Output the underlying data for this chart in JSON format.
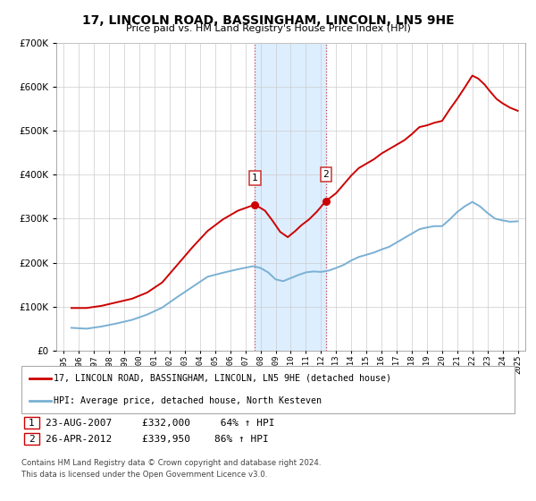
{
  "title": "17, LINCOLN ROAD, BASSINGHAM, LINCOLN, LN5 9HE",
  "subtitle": "Price paid vs. HM Land Registry's House Price Index (HPI)",
  "legend_house": "17, LINCOLN ROAD, BASSINGHAM, LINCOLN, LN5 9HE (detached house)",
  "legend_hpi": "HPI: Average price, detached house, North Kesteven",
  "sale1_date": "23-AUG-2007",
  "sale1_price": "£332,000",
  "sale1_hpi": "64% ↑ HPI",
  "sale2_date": "26-APR-2012",
  "sale2_price": "£339,950",
  "sale2_hpi": "86% ↑ HPI",
  "footnote1": "Contains HM Land Registry data © Crown copyright and database right 2024.",
  "footnote2": "This data is licensed under the Open Government Licence v3.0.",
  "house_color": "#cc0000",
  "hpi_color": "#7ab0d4",
  "shade_color": "#ddeeff",
  "sale1_year": 2007.63,
  "sale2_year": 2012.32,
  "sale1_price_val": 332000,
  "sale2_price_val": 339950,
  "ylim": [
    0,
    700000
  ],
  "xlim_start": 1994.5,
  "xlim_end": 2025.5,
  "house_prices_years": [
    1995.5,
    1996.5,
    1997.5,
    1998.5,
    1999.5,
    2000.5,
    2001.5,
    2002.5,
    2003.5,
    2004.5,
    2005.5,
    2006.5,
    2007.63,
    2008.3,
    2008.8,
    2009.3,
    2009.8,
    2010.3,
    2010.7,
    2011.2,
    2011.7,
    2012.32,
    2013.0,
    2013.5,
    2014.0,
    2014.5,
    2015.0,
    2015.5,
    2016.0,
    2016.5,
    2017.0,
    2017.5,
    2018.0,
    2018.5,
    2019.0,
    2019.5,
    2020.0,
    2020.5,
    2021.0,
    2021.5,
    2022.0,
    2022.4,
    2022.8,
    2023.2,
    2023.6,
    2024.0,
    2024.5,
    2025.0
  ],
  "house_prices_values": [
    97000,
    97000,
    102000,
    110000,
    118000,
    132000,
    155000,
    195000,
    235000,
    272000,
    298000,
    318000,
    332000,
    318000,
    295000,
    270000,
    258000,
    272000,
    285000,
    298000,
    315000,
    339950,
    358000,
    378000,
    398000,
    415000,
    425000,
    435000,
    448000,
    458000,
    468000,
    478000,
    492000,
    508000,
    512000,
    518000,
    522000,
    548000,
    572000,
    598000,
    625000,
    618000,
    605000,
    588000,
    572000,
    562000,
    552000,
    545000
  ],
  "hpi_years": [
    1995.5,
    1996.5,
    1997.5,
    1998.5,
    1999.5,
    2000.5,
    2001.5,
    2002.5,
    2003.5,
    2004.5,
    2005.5,
    2006.5,
    2007.5,
    2008.0,
    2008.5,
    2009.0,
    2009.5,
    2010.0,
    2010.5,
    2011.0,
    2011.5,
    2012.0,
    2012.5,
    2013.0,
    2013.5,
    2014.0,
    2014.5,
    2015.0,
    2015.5,
    2016.0,
    2016.5,
    2017.0,
    2017.5,
    2018.0,
    2018.5,
    2019.0,
    2019.5,
    2020.0,
    2020.5,
    2021.0,
    2021.5,
    2022.0,
    2022.5,
    2023.0,
    2023.5,
    2024.0,
    2024.5,
    2025.0
  ],
  "hpi_values": [
    52000,
    50000,
    55000,
    62000,
    70000,
    82000,
    98000,
    122000,
    145000,
    168000,
    177000,
    185000,
    192000,
    188000,
    178000,
    162000,
    158000,
    165000,
    172000,
    178000,
    180000,
    179000,
    182000,
    188000,
    195000,
    205000,
    213000,
    218000,
    223000,
    230000,
    236000,
    246000,
    256000,
    266000,
    276000,
    280000,
    283000,
    283000,
    298000,
    315000,
    328000,
    338000,
    328000,
    313000,
    300000,
    296000,
    293000,
    294000
  ]
}
